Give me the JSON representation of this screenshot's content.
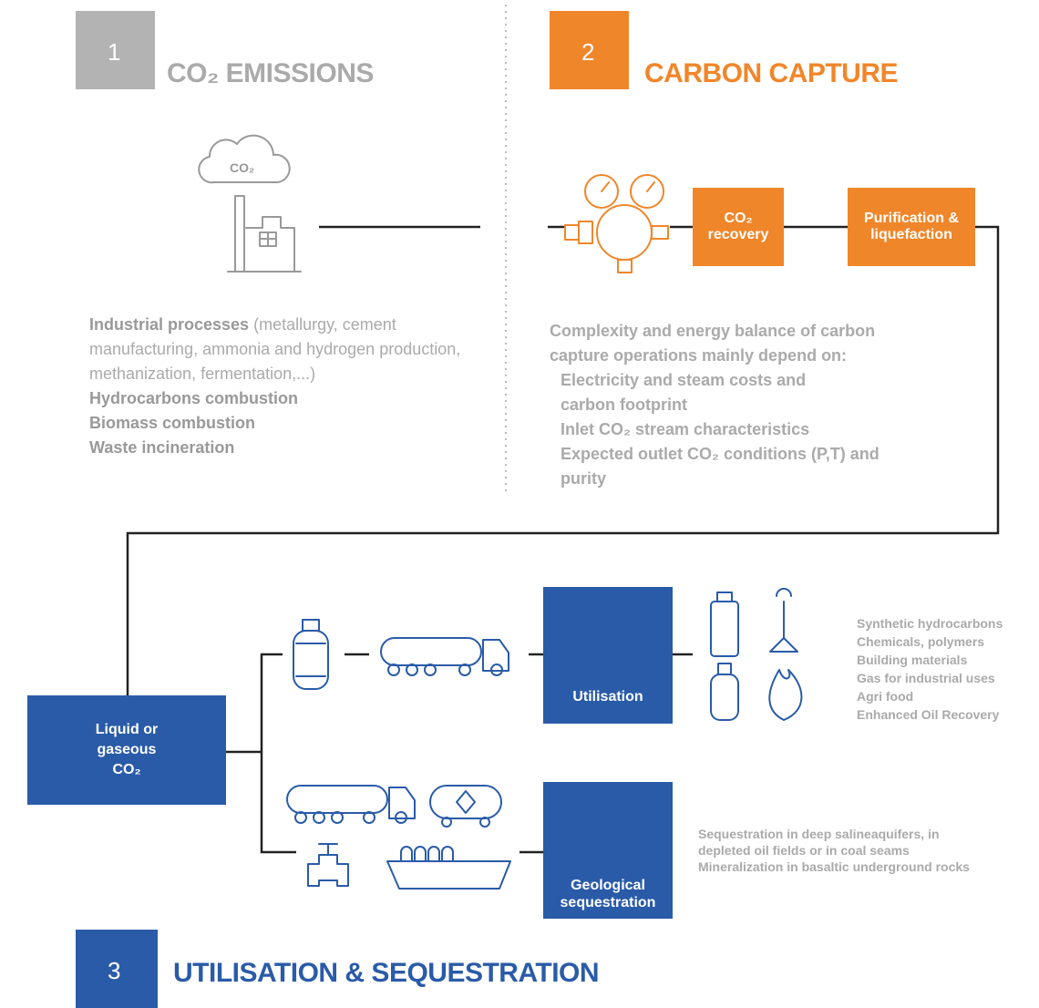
{
  "emissions": {
    "number": "1",
    "title": "CO₂ EMISSIONS",
    "cloud_label": "CO₂",
    "bullets": [
      {
        "bold": "Industrial processes",
        "text": " (metallurgy, cement manufacturing, ammonia and hydrogen production, methanization, fermentation,...)"
      },
      {
        "bold": "Hydrocarbons combustion"
      },
      {
        "bold": "Biomass combustion"
      },
      {
        "bold": "Waste incineration"
      }
    ]
  },
  "capture": {
    "number": "2",
    "title": "CARBON CAPTURE",
    "steps": [
      "CO₂ recovery",
      "Purification & liquefaction"
    ],
    "intro": "Complexity and energy balance of carbon capture operations mainly depend on:",
    "bullets": [
      "Electricity and steam costs and carbon footprint",
      "Inlet CO₂ stream characteristics",
      "Expected outlet CO₂ conditions (P,T) and purity"
    ]
  },
  "utilisation": {
    "number": "3",
    "title": "UTILISATION & SEQUESTRATION",
    "source": "Liquid or gaseous CO₂",
    "utilisation_box": "Utilisation",
    "utilisation_bullets": [
      "Synthetic hydrocarbons",
      "Chemicals, polymers",
      "Building materials",
      "Gas for industrial uses",
      "Agri food",
      "Enhanced Oil Recovery"
    ],
    "sequestration_box": "Geological sequestration",
    "sequestration_bullets": [
      "Sequestration in deep salineaquifers, in depleted oil fields or in coal seams",
      "Mineralization in basaltic underground rocks"
    ]
  }
}
